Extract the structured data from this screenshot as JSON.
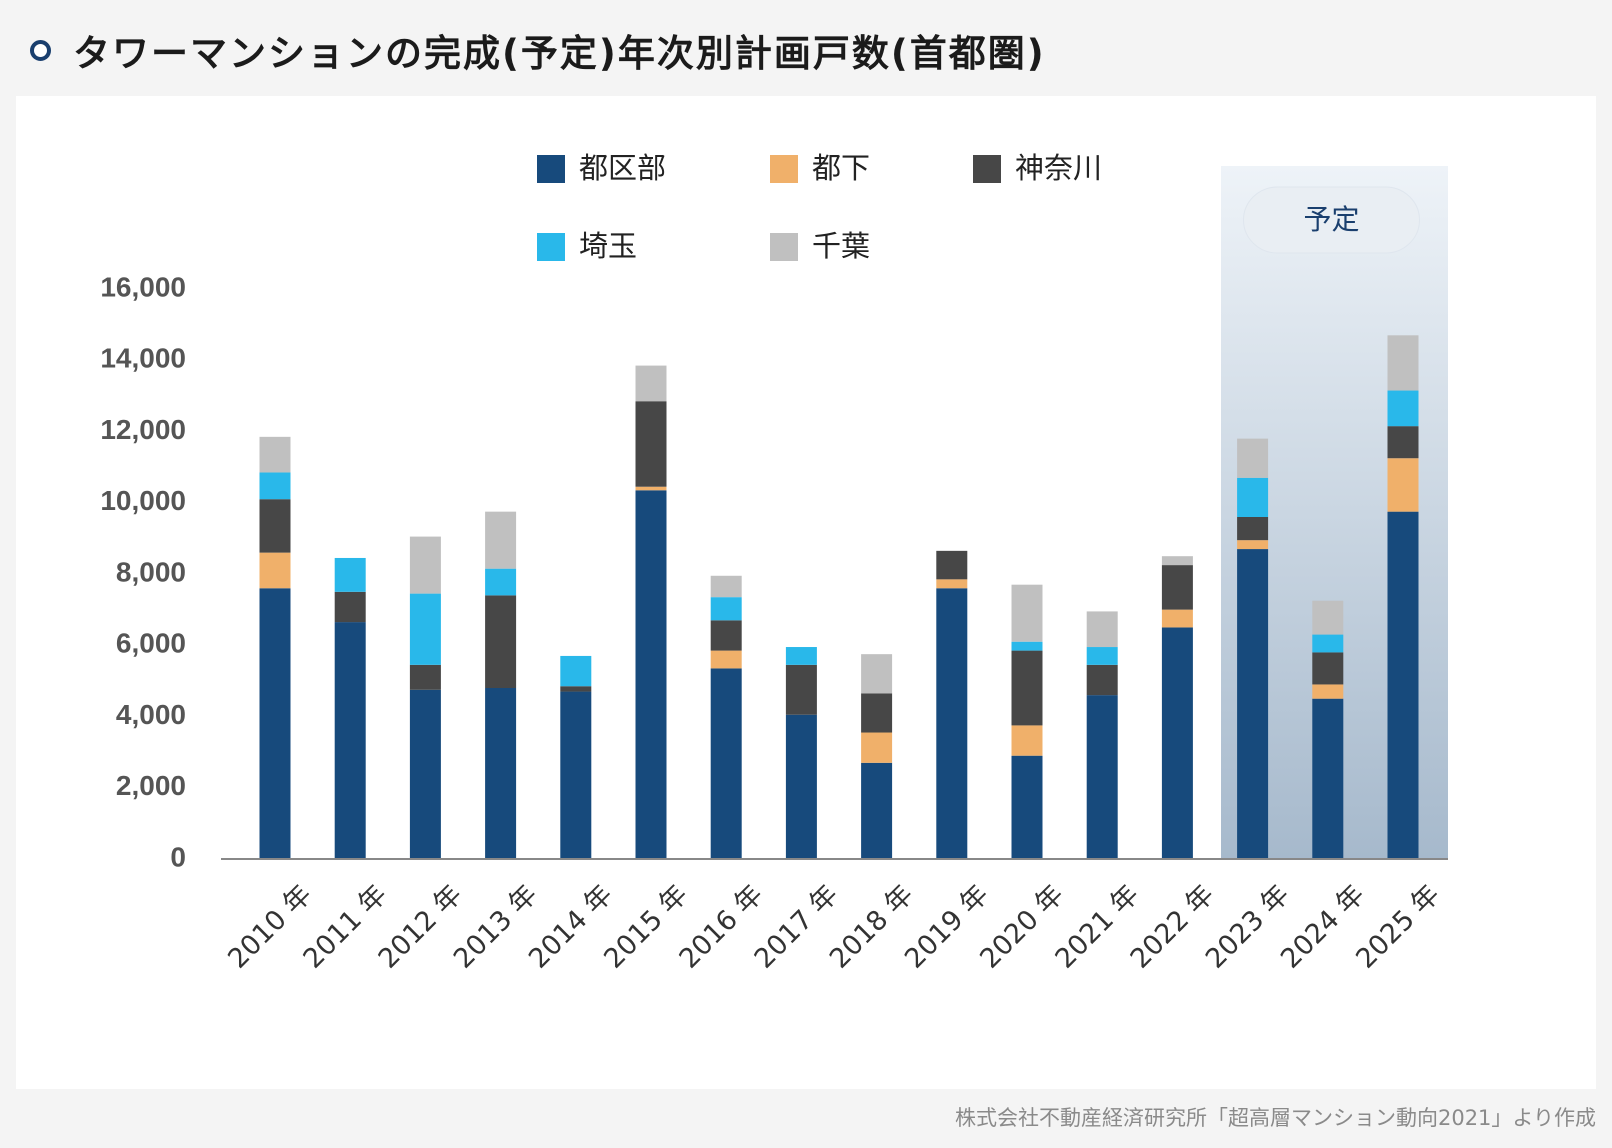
{
  "title": "タワーマンションの完成(予定)年次別計画戸数(首都圏)",
  "title_icon": "ring-bullet-icon",
  "source": "株式会社不動産経済研究所「超高層マンション動向2021」より作成",
  "forecast_label": "予定",
  "chart_data": {
    "type": "bar",
    "stacked": true,
    "title": "タワーマンションの完成(予定)年次別計画戸数(首都圏)",
    "categories": [
      "2010 年",
      "2011 年",
      "2012 年",
      "2013 年",
      "2014 年",
      "2015 年",
      "2016 年",
      "2017 年",
      "2018 年",
      "2019 年",
      "2020 年",
      "2021 年",
      "2022 年",
      "2023 年",
      "2024 年",
      "2025 年"
    ],
    "series": [
      {
        "name": "都区部",
        "color": "#174a7c",
        "values": [
          7600,
          6650,
          4750,
          4800,
          4700,
          10350,
          5350,
          4050,
          2700,
          7600,
          2900,
          4600,
          6500,
          8700,
          4500,
          9750
        ]
      },
      {
        "name": "都下",
        "color": "#f0b06a",
        "values": [
          1000,
          0,
          0,
          0,
          0,
          100,
          500,
          0,
          850,
          250,
          850,
          0,
          500,
          250,
          400,
          1500
        ]
      },
      {
        "name": "神奈川",
        "color": "#474747",
        "values": [
          1500,
          850,
          700,
          2600,
          150,
          2400,
          850,
          1400,
          1100,
          800,
          2100,
          850,
          1250,
          650,
          900,
          900
        ]
      },
      {
        "name": "埼玉",
        "color": "#29b8ea",
        "values": [
          750,
          950,
          2000,
          750,
          850,
          0,
          650,
          500,
          0,
          0,
          250,
          500,
          0,
          1100,
          500,
          1000
        ]
      },
      {
        "name": "千葉",
        "color": "#c0c0c0",
        "values": [
          1000,
          0,
          1600,
          1600,
          0,
          1000,
          600,
          0,
          1100,
          0,
          1600,
          1000,
          250,
          1100,
          950,
          1550
        ]
      }
    ],
    "ylim": [
      0,
      16000
    ],
    "yticks": [
      "0",
      "2,000",
      "4,000",
      "6,000",
      "8,000",
      "10,000",
      "12,000",
      "14,000",
      "16,000"
    ],
    "legend": "top",
    "forecast_categories": [
      "2023 年",
      "2024 年",
      "2025 年"
    ],
    "grid": false
  }
}
